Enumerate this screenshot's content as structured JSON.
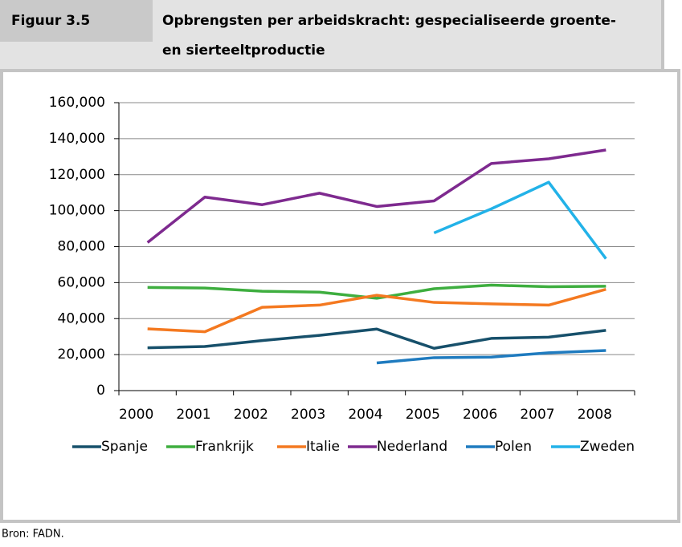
{
  "figure_label": "Figuur 3.5",
  "source": "Bron: FADN.",
  "chart_data": {
    "type": "line",
    "title": [
      "Opbrengsten per arbeidskracht: gespecialiseerde groente-",
      "en sierteeltproductie"
    ],
    "categories": [
      "2000",
      "2001",
      "2002",
      "2003",
      "2004",
      "2005",
      "2006",
      "2007",
      "2008"
    ],
    "ylim": [
      0,
      160000
    ],
    "yticks": [
      {
        "value": 0,
        "label": "0"
      },
      {
        "value": 20000,
        "label": "20,000"
      },
      {
        "value": 40000,
        "label": "40,000"
      },
      {
        "value": 60000,
        "label": "60,000"
      },
      {
        "value": 80000,
        "label": "80,000"
      },
      {
        "value": 100000,
        "label": "100,000"
      },
      {
        "value": 120000,
        "label": "120,000"
      },
      {
        "value": 140000,
        "label": "140,000"
      },
      {
        "value": 160000,
        "label": "160,000"
      }
    ],
    "grid": true,
    "legend": "bottom",
    "series": [
      {
        "name": "Spanje",
        "color": "#17506b",
        "values": [
          23800,
          24500,
          27800,
          30700,
          34200,
          23500,
          29000,
          29700,
          33500
        ]
      },
      {
        "name": "Frankrijk",
        "color": "#3eae3f",
        "values": [
          57300,
          57000,
          55200,
          54700,
          51300,
          56600,
          58600,
          57700,
          58000
        ]
      },
      {
        "name": "Italie",
        "color": "#f47920",
        "values": [
          34300,
          32700,
          46300,
          47500,
          53000,
          49000,
          48200,
          47500,
          56300
        ]
      },
      {
        "name": "Nederland",
        "color": "#7e2a8f",
        "values": [
          82300,
          107500,
          103300,
          109700,
          102300,
          105400,
          126200,
          128800,
          133700
        ]
      },
      {
        "name": "Polen",
        "color": "#1f7bbf",
        "values": [
          null,
          null,
          null,
          null,
          15400,
          18300,
          18600,
          21000,
          22300
        ]
      },
      {
        "name": "Zweden",
        "color": "#22b2e8",
        "values": [
          null,
          null,
          null,
          null,
          null,
          87600,
          101000,
          115800,
          73300
        ]
      }
    ]
  }
}
